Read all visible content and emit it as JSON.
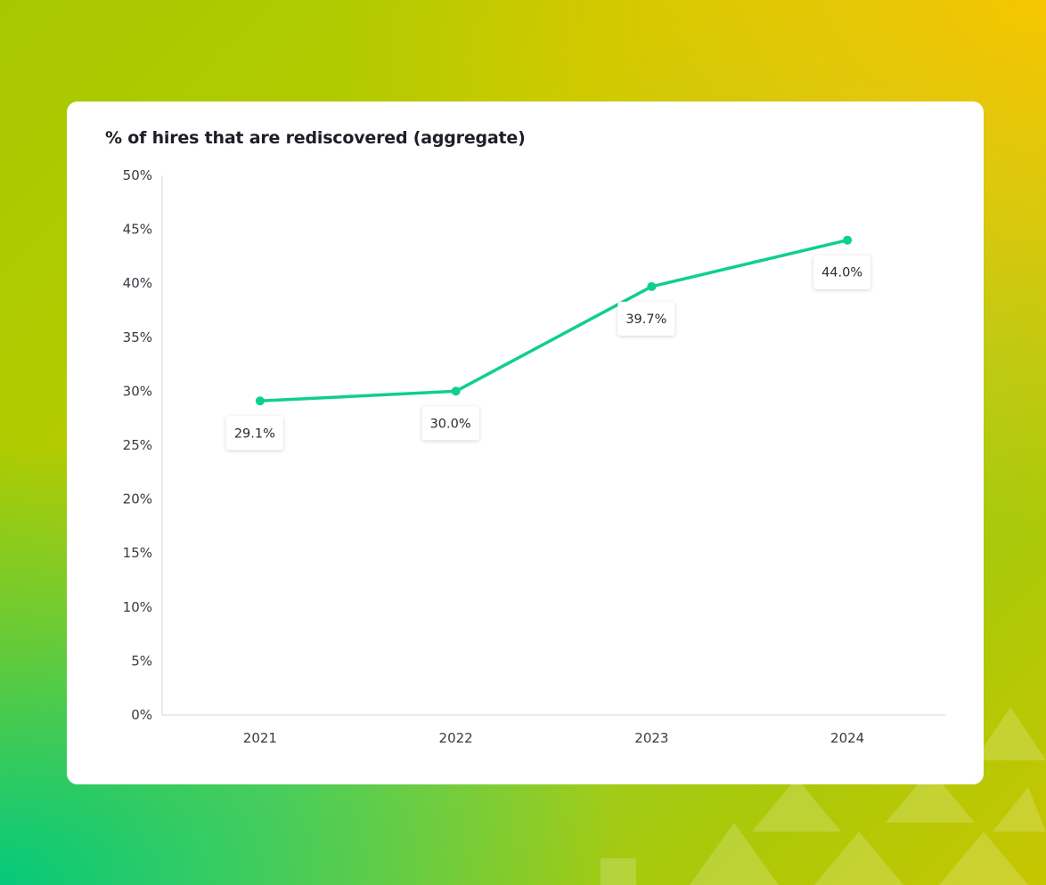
{
  "chart_data": {
    "type": "line",
    "title": "% of hires that are rediscovered (aggregate)",
    "xlabel": "",
    "ylabel": "",
    "categories": [
      "2021",
      "2022",
      "2023",
      "2024"
    ],
    "series": [
      {
        "values": [
          29.1,
          30.0,
          39.7,
          44.0
        ],
        "labels": [
          "29.1%",
          "30.0%",
          "39.7%",
          "44.0%"
        ]
      }
    ],
    "ylim": [
      0,
      50
    ],
    "yticks": [
      {
        "value": 0,
        "label": "0%"
      },
      {
        "value": 5,
        "label": "5%"
      },
      {
        "value": 10,
        "label": "10%"
      },
      {
        "value": 15,
        "label": "15%"
      },
      {
        "value": 20,
        "label": "20%"
      },
      {
        "value": 25,
        "label": "25%"
      },
      {
        "value": 30,
        "label": "30%"
      },
      {
        "value": 35,
        "label": "35%"
      },
      {
        "value": 40,
        "label": "40%"
      },
      {
        "value": 45,
        "label": "45%"
      },
      {
        "value": 50,
        "label": "50%"
      }
    ],
    "grid": false,
    "legend": "none",
    "line_color": "#0fcf8f"
  }
}
